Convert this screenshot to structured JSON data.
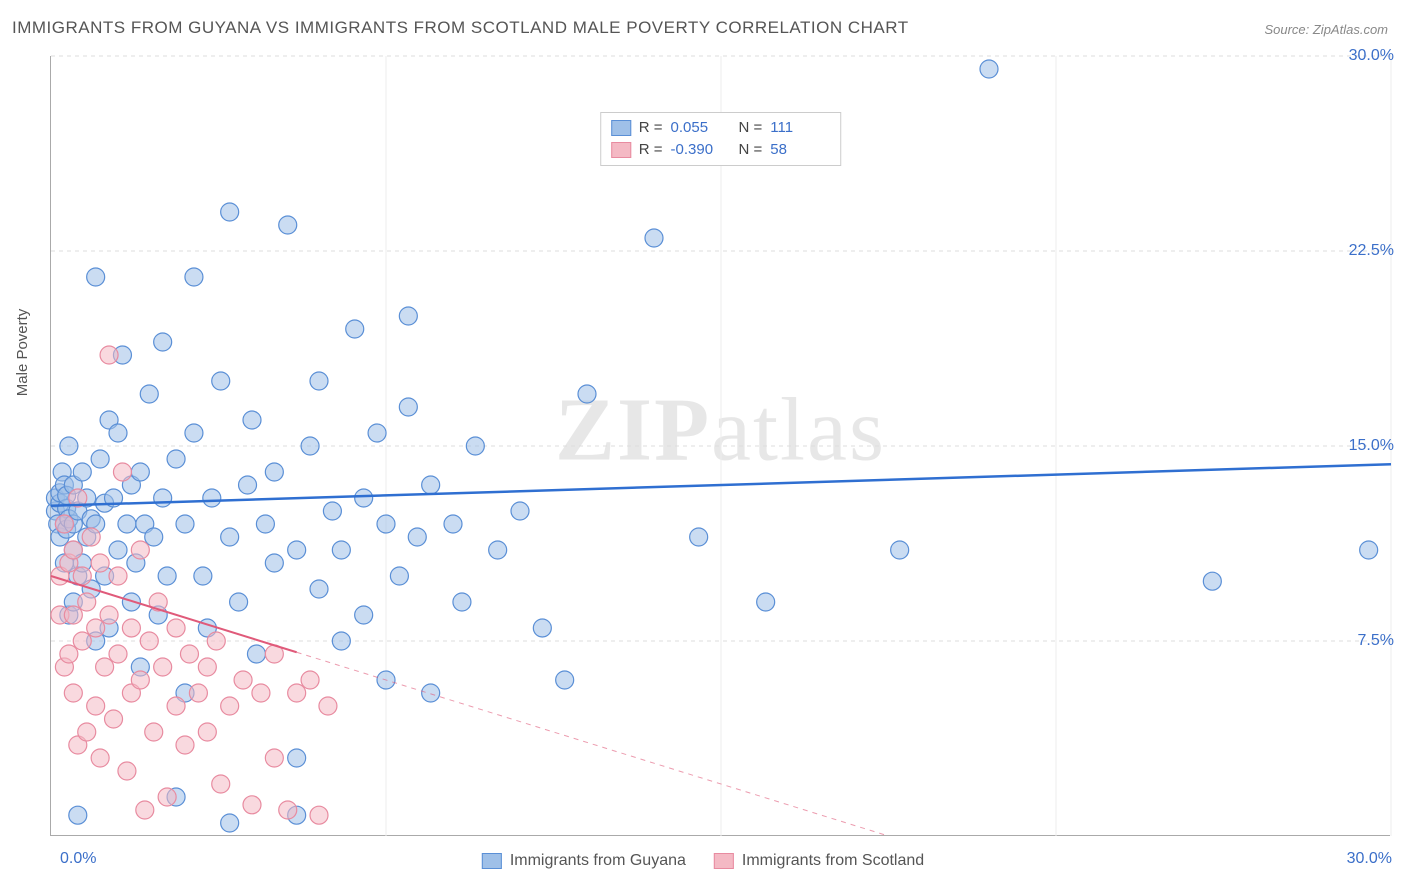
{
  "title": "IMMIGRANTS FROM GUYANA VS IMMIGRANTS FROM SCOTLAND MALE POVERTY CORRELATION CHART",
  "source": "Source: ZipAtlas.com",
  "y_axis_label": "Male Poverty",
  "watermark": {
    "part1": "ZIP",
    "part2": "atlas"
  },
  "chart": {
    "type": "scatter",
    "background_color": "#ffffff",
    "grid_color": "#dddddd",
    "xlim": [
      0,
      30
    ],
    "ylim": [
      0,
      30
    ],
    "x_ticks": [
      0,
      7.5,
      15,
      22.5,
      30
    ],
    "y_ticks": [
      7.5,
      15,
      22.5,
      30
    ],
    "x_tick_labels_shown": [
      "0.0%",
      "30.0%"
    ],
    "y_tick_labels": [
      "7.5%",
      "15.0%",
      "22.5%",
      "30.0%"
    ],
    "tick_fontsize": 16,
    "tick_color": "#3b6fc9",
    "marker_radius": 9,
    "marker_opacity": 0.55,
    "series": [
      {
        "name": "Immigrants from Guyana",
        "color_fill": "#9fc0e8",
        "color_stroke": "#5a8fd6",
        "R": "0.055",
        "N": "111",
        "trendline": {
          "y_at_x0": 12.7,
          "y_at_x30": 14.3,
          "color": "#2f6fd1",
          "width": 2.5,
          "dash": "none"
        },
        "points": [
          [
            0.1,
            12.5
          ],
          [
            0.1,
            13.0
          ],
          [
            0.15,
            12.0
          ],
          [
            0.2,
            12.8
          ],
          [
            0.2,
            13.2
          ],
          [
            0.2,
            11.5
          ],
          [
            0.25,
            14.0
          ],
          [
            0.3,
            12.0
          ],
          [
            0.3,
            13.5
          ],
          [
            0.3,
            10.5
          ],
          [
            0.35,
            12.6
          ],
          [
            0.35,
            11.8
          ],
          [
            0.35,
            13.1
          ],
          [
            0.4,
            12.2
          ],
          [
            0.4,
            8.5
          ],
          [
            0.4,
            15.0
          ],
          [
            0.5,
            12.0
          ],
          [
            0.5,
            9.0
          ],
          [
            0.5,
            13.5
          ],
          [
            0.5,
            11.0
          ],
          [
            0.6,
            10.0
          ],
          [
            0.6,
            12.5
          ],
          [
            0.7,
            14.0
          ],
          [
            0.7,
            10.5
          ],
          [
            0.8,
            11.5
          ],
          [
            0.8,
            13.0
          ],
          [
            0.9,
            9.5
          ],
          [
            0.9,
            12.2
          ],
          [
            1.0,
            21.5
          ],
          [
            1.0,
            7.5
          ],
          [
            1.0,
            12.0
          ],
          [
            1.1,
            14.5
          ],
          [
            1.2,
            10.0
          ],
          [
            1.2,
            12.8
          ],
          [
            1.3,
            16.0
          ],
          [
            1.3,
            8.0
          ],
          [
            1.4,
            13.0
          ],
          [
            1.5,
            11.0
          ],
          [
            1.5,
            15.5
          ],
          [
            1.6,
            18.5
          ],
          [
            1.7,
            12.0
          ],
          [
            1.8,
            9.0
          ],
          [
            1.8,
            13.5
          ],
          [
            1.9,
            10.5
          ],
          [
            2.0,
            14.0
          ],
          [
            2.0,
            6.5
          ],
          [
            2.1,
            12.0
          ],
          [
            2.2,
            17.0
          ],
          [
            2.3,
            11.5
          ],
          [
            2.4,
            8.5
          ],
          [
            2.5,
            13.0
          ],
          [
            2.5,
            19.0
          ],
          [
            2.6,
            10.0
          ],
          [
            2.8,
            14.5
          ],
          [
            2.8,
            1.5
          ],
          [
            3.0,
            12.0
          ],
          [
            3.0,
            5.5
          ],
          [
            3.2,
            21.5
          ],
          [
            3.2,
            15.5
          ],
          [
            3.4,
            10.0
          ],
          [
            3.5,
            8.0
          ],
          [
            3.6,
            13.0
          ],
          [
            3.8,
            17.5
          ],
          [
            4.0,
            11.5
          ],
          [
            4.0,
            24.0
          ],
          [
            4.2,
            9.0
          ],
          [
            4.4,
            13.5
          ],
          [
            4.5,
            16.0
          ],
          [
            4.6,
            7.0
          ],
          [
            4.8,
            12.0
          ],
          [
            5.0,
            10.5
          ],
          [
            5.0,
            14.0
          ],
          [
            5.3,
            23.5
          ],
          [
            5.5,
            11.0
          ],
          [
            5.5,
            3.0
          ],
          [
            5.8,
            15.0
          ],
          [
            6.0,
            9.5
          ],
          [
            6.0,
            17.5
          ],
          [
            6.3,
            12.5
          ],
          [
            6.5,
            7.5
          ],
          [
            6.5,
            11.0
          ],
          [
            6.8,
            19.5
          ],
          [
            7.0,
            13.0
          ],
          [
            7.0,
            8.5
          ],
          [
            7.3,
            15.5
          ],
          [
            7.5,
            12.0
          ],
          [
            7.5,
            6.0
          ],
          [
            7.8,
            10.0
          ],
          [
            8.0,
            16.5
          ],
          [
            8.0,
            20.0
          ],
          [
            8.2,
            11.5
          ],
          [
            8.5,
            13.5
          ],
          [
            8.5,
            5.5
          ],
          [
            9.0,
            12.0
          ],
          [
            9.2,
            9.0
          ],
          [
            9.5,
            15.0
          ],
          [
            10.0,
            11.0
          ],
          [
            10.5,
            12.5
          ],
          [
            11.0,
            8.0
          ],
          [
            11.5,
            6.0
          ],
          [
            12.0,
            17.0
          ],
          [
            13.5,
            23.0
          ],
          [
            14.5,
            11.5
          ],
          [
            16.0,
            9.0
          ],
          [
            19.0,
            11.0
          ],
          [
            21.0,
            29.5
          ],
          [
            26.0,
            9.8
          ],
          [
            29.5,
            11.0
          ],
          [
            0.6,
            0.8
          ],
          [
            4.0,
            0.5
          ],
          [
            5.5,
            0.8
          ]
        ]
      },
      {
        "name": "Immigrants from Scotland",
        "color_fill": "#f4b9c4",
        "color_stroke": "#e88ba0",
        "R": "-0.390",
        "N": "58",
        "trendline": {
          "y_at_x0": 10.0,
          "y_at_x30": -6.0,
          "color": "#e05a7a",
          "width": 2,
          "dash_solid_until_x": 5.5
        },
        "points": [
          [
            0.2,
            10.0
          ],
          [
            0.2,
            8.5
          ],
          [
            0.3,
            12.0
          ],
          [
            0.3,
            6.5
          ],
          [
            0.4,
            10.5
          ],
          [
            0.4,
            7.0
          ],
          [
            0.5,
            11.0
          ],
          [
            0.5,
            5.5
          ],
          [
            0.5,
            8.5
          ],
          [
            0.6,
            13.0
          ],
          [
            0.6,
            3.5
          ],
          [
            0.7,
            10.0
          ],
          [
            0.7,
            7.5
          ],
          [
            0.8,
            4.0
          ],
          [
            0.8,
            9.0
          ],
          [
            0.9,
            11.5
          ],
          [
            1.0,
            5.0
          ],
          [
            1.0,
            8.0
          ],
          [
            1.1,
            10.5
          ],
          [
            1.1,
            3.0
          ],
          [
            1.2,
            6.5
          ],
          [
            1.3,
            18.5
          ],
          [
            1.3,
            8.5
          ],
          [
            1.4,
            4.5
          ],
          [
            1.5,
            7.0
          ],
          [
            1.5,
            10.0
          ],
          [
            1.6,
            14.0
          ],
          [
            1.7,
            2.5
          ],
          [
            1.8,
            8.0
          ],
          [
            1.8,
            5.5
          ],
          [
            2.0,
            6.0
          ],
          [
            2.0,
            11.0
          ],
          [
            2.1,
            1.0
          ],
          [
            2.2,
            7.5
          ],
          [
            2.3,
            4.0
          ],
          [
            2.4,
            9.0
          ],
          [
            2.5,
            6.5
          ],
          [
            2.6,
            1.5
          ],
          [
            2.8,
            5.0
          ],
          [
            2.8,
            8.0
          ],
          [
            3.0,
            3.5
          ],
          [
            3.1,
            7.0
          ],
          [
            3.3,
            5.5
          ],
          [
            3.5,
            4.0
          ],
          [
            3.5,
            6.5
          ],
          [
            3.7,
            7.5
          ],
          [
            3.8,
            2.0
          ],
          [
            4.0,
            5.0
          ],
          [
            4.3,
            6.0
          ],
          [
            4.5,
            1.2
          ],
          [
            4.7,
            5.5
          ],
          [
            5.0,
            7.0
          ],
          [
            5.0,
            3.0
          ],
          [
            5.3,
            1.0
          ],
          [
            5.5,
            5.5
          ],
          [
            5.8,
            6.0
          ],
          [
            6.0,
            0.8
          ],
          [
            6.2,
            5.0
          ]
        ]
      }
    ]
  },
  "legend_top": {
    "r_label": "R =",
    "n_label": "N ="
  },
  "legend_bottom": {
    "items": [
      "Immigrants from Guyana",
      "Immigrants from Scotland"
    ]
  }
}
